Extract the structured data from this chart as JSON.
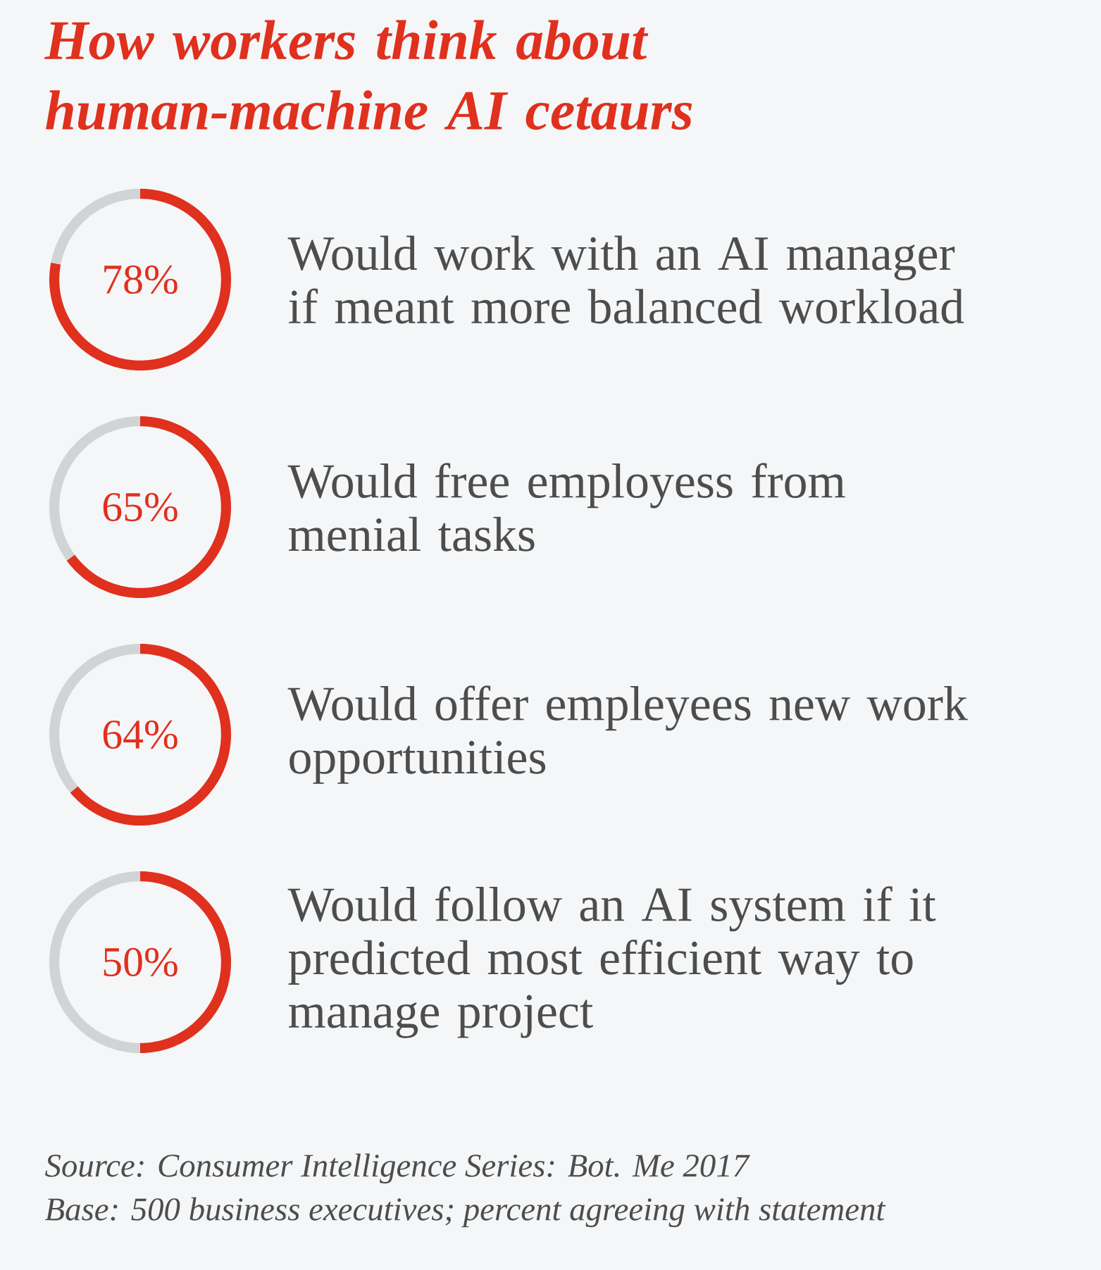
{
  "chart_data": [
    {
      "type": "donut",
      "title": "How workers think about human-machine AI cetaurs",
      "subtitle": "Would work with an AI manager if meant more balanced workload",
      "categories": [
        null,
        null
      ],
      "values": [
        78,
        22
      ],
      "colors": [
        "#e0301e",
        "#d2d3d5"
      ],
      "annotations": [
        "78%"
      ]
    },
    {
      "type": "donut",
      "subtitle": "Would free employess from menial tasks",
      "categories": [
        null,
        null
      ],
      "values": [
        65,
        35
      ],
      "colors": [
        "#e0301e",
        "#d2d3d5"
      ],
      "annotations": [
        "65%"
      ]
    },
    {
      "type": "donut",
      "subtitle": "Would offer empleyees new work opportunities",
      "categories": [
        null,
        null
      ],
      "values": [
        64,
        36
      ],
      "colors": [
        "#e0301e",
        "#d2d3d5"
      ],
      "annotations": [
        "64%"
      ]
    },
    {
      "type": "donut",
      "subtitle": "Would follow an AI system if it predicted most efficient way to manage project",
      "categories": [
        null,
        null
      ],
      "values": [
        50,
        50
      ],
      "colors": [
        "#e0301e",
        "#d2d3d5"
      ],
      "annotations": [
        "50%",
        "Source: Consumer Intelligence Series: Bot. Me 2017",
        "Base: 500 business executives; percent agreeing with statement"
      ]
    }
  ]
}
